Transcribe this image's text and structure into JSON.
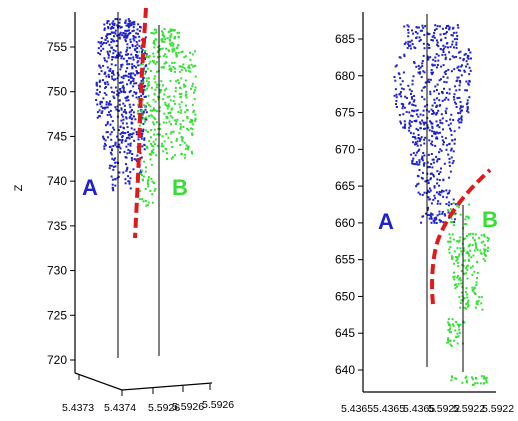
{
  "colors": {
    "cluster_a": "#1f22c8",
    "cluster_b": "#33e033",
    "boundary": "#e01a1a",
    "axis": "#000000",
    "background": "#ffffff"
  },
  "chart_data": [
    {
      "type": "scatter",
      "title": "",
      "ylabel": "Z",
      "xlabel": "",
      "ylim": [
        716,
        759
      ],
      "y_ticks": [
        720,
        725,
        730,
        735,
        740,
        745,
        750,
        755
      ],
      "x_tick_labels": [
        "5.4373",
        "5.4374",
        "5.5926",
        "5.5926",
        "5.5926"
      ],
      "grid": false,
      "series": [
        {
          "name": "A",
          "color_key": "cluster_a",
          "z_range": [
            739,
            758
          ],
          "count": 650
        },
        {
          "name": "B",
          "color_key": "cluster_b",
          "z_range": [
            741,
            757
          ],
          "count": 440
        }
      ],
      "wells": [
        {
          "z_range": [
            720.5,
            758
          ]
        },
        {
          "z_range": [
            720.5,
            756
          ]
        }
      ],
      "boundary": {
        "style": "dashed",
        "z_range": [
          734,
          759
        ]
      },
      "annotations": [
        {
          "text": "A",
          "color_key": "cluster_a"
        },
        {
          "text": "B",
          "color_key": "cluster_b"
        }
      ]
    },
    {
      "type": "scatter",
      "title": "",
      "ylabel": "",
      "xlabel": "",
      "ylim": [
        637,
        689
      ],
      "y_ticks": [
        640,
        645,
        650,
        655,
        660,
        665,
        670,
        675,
        680,
        685
      ],
      "x_tick_labels": [
        "5.4365",
        "5.4365",
        "5.4365",
        "5.5922",
        "5.5922",
        "5.5922"
      ],
      "grid": false,
      "series": [
        {
          "name": "A",
          "color_key": "cluster_a",
          "z_range": [
            660,
            687
          ],
          "count": 700
        },
        {
          "name": "B",
          "color_key": "cluster_b",
          "z_range": [
            638,
            662
          ],
          "count": 260
        }
      ],
      "wells": [
        {
          "z_range": [
            641,
            688
          ]
        },
        {
          "z_range": [
            639,
            663
          ]
        }
      ],
      "boundary": {
        "style": "dashed",
        "z_range": [
          649,
          667
        ]
      },
      "annotations": [
        {
          "text": "A",
          "color_key": "cluster_a"
        },
        {
          "text": "B",
          "color_key": "cluster_b"
        }
      ]
    }
  ]
}
